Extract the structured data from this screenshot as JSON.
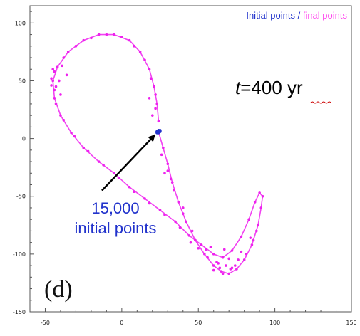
{
  "chart_data": {
    "type": "scatter",
    "xlim": [
      -60,
      150
    ],
    "ylim": [
      -150,
      115
    ],
    "x_ticks": [
      -50,
      0,
      50,
      100,
      150
    ],
    "y_ticks": [
      -150,
      -100,
      -50,
      0,
      50,
      100
    ],
    "x_tick_labels": [
      "-50",
      "0",
      "50",
      "100",
      "150"
    ],
    "y_tick_labels": [
      "-150",
      "-100",
      "-50",
      "0",
      "50",
      "100"
    ],
    "grid": false,
    "legend": {
      "position": "top-right",
      "entries": [
        {
          "label": "Initial points",
          "color": "#2233cc"
        },
        {
          "label": " / ",
          "color": "#2233cc"
        },
        {
          "label": "final points",
          "color": "#ff44ee"
        }
      ]
    },
    "series": [
      {
        "name": "final points",
        "color": "#ee22ee",
        "points": [
          [
            24,
            6
          ],
          [
            27,
            -8
          ],
          [
            30,
            -22
          ],
          [
            33,
            -38
          ],
          [
            37,
            -55
          ],
          [
            42,
            -72
          ],
          [
            48,
            -88
          ],
          [
            54,
            -100
          ],
          [
            60,
            -110
          ],
          [
            65,
            -115
          ],
          [
            70,
            -117
          ],
          [
            75,
            -113
          ],
          [
            80,
            -105
          ],
          [
            85,
            -92
          ],
          [
            89,
            -75
          ],
          [
            91,
            -60
          ],
          [
            92,
            -50
          ],
          [
            90,
            -47
          ],
          [
            87,
            -55
          ],
          [
            83,
            -70
          ],
          [
            78,
            -85
          ],
          [
            72,
            -97
          ],
          [
            66,
            -103
          ],
          [
            60,
            -100
          ],
          [
            52,
            -92
          ],
          [
            44,
            -84
          ],
          [
            35,
            -72
          ],
          [
            25,
            -62
          ],
          [
            15,
            -52
          ],
          [
            5,
            -42
          ],
          [
            -5,
            -30
          ],
          [
            -15,
            -20
          ],
          [
            -25,
            -8
          ],
          [
            -33,
            5
          ],
          [
            -40,
            20
          ],
          [
            -44,
            35
          ],
          [
            -45,
            50
          ],
          [
            -42,
            62
          ],
          [
            -35,
            75
          ],
          [
            -25,
            85
          ],
          [
            -15,
            90
          ],
          [
            -5,
            90
          ],
          [
            5,
            85
          ],
          [
            12,
            75
          ],
          [
            18,
            60
          ],
          [
            21,
            45
          ],
          [
            23,
            30
          ],
          [
            24,
            15
          ],
          [
            26,
            -14
          ],
          [
            30,
            -28
          ],
          [
            34,
            -45
          ],
          [
            40,
            -65
          ],
          [
            46,
            -80
          ],
          [
            55,
            -96
          ],
          [
            63,
            -108
          ],
          [
            72,
            -112
          ],
          [
            81,
            -100
          ],
          [
            88,
            -80
          ],
          [
            67,
            -96
          ],
          [
            58,
            -94
          ],
          [
            48,
            -88
          ],
          [
            38,
            -77
          ],
          [
            28,
            -66
          ],
          [
            18,
            -56
          ],
          [
            8,
            -46
          ],
          [
            -2,
            -34
          ],
          [
            -12,
            -23
          ],
          [
            -22,
            -11
          ],
          [
            -31,
            2
          ],
          [
            -38,
            16
          ],
          [
            -43,
            30
          ],
          [
            -46,
            46
          ],
          [
            -44,
            58
          ],
          [
            -38,
            70
          ],
          [
            -30,
            80
          ],
          [
            -20,
            87
          ],
          [
            -10,
            90
          ],
          [
            0,
            88
          ],
          [
            8,
            80
          ],
          [
            15,
            68
          ],
          [
            19,
            52
          ],
          [
            22,
            38
          ],
          [
            -46,
            52
          ],
          [
            -45,
            60
          ],
          [
            -43,
            45
          ],
          [
            -40,
            38
          ],
          [
            -39,
            63
          ],
          [
            -44,
            42
          ],
          [
            -36,
            55
          ],
          [
            -41,
            50
          ],
          [
            20,
            20
          ],
          [
            22,
            26
          ],
          [
            18,
            35
          ],
          [
            28,
            -30
          ],
          [
            32,
            -35
          ],
          [
            40,
            -60
          ],
          [
            64,
            -112
          ],
          [
            68,
            -110
          ],
          [
            74,
            -110
          ],
          [
            78,
            -98
          ],
          [
            84,
            -86
          ],
          [
            86,
            -88
          ],
          [
            76,
            -105
          ],
          [
            70,
            -104
          ],
          [
            62,
            -107
          ],
          [
            56,
            -103
          ],
          [
            50,
            -95
          ],
          [
            45,
            -90
          ],
          [
            60,
            -114
          ],
          [
            66,
            -117
          ],
          [
            71,
            -113
          ]
        ]
      },
      {
        "name": "Initial points",
        "color": "#2233cc",
        "points": [
          [
            23,
            6
          ],
          [
            24,
            6
          ],
          [
            25,
            6
          ],
          [
            24,
            5
          ],
          [
            24,
            7
          ],
          [
            23,
            5
          ],
          [
            25,
            7
          ]
        ]
      }
    ],
    "annotations": {
      "time_prefix": "t",
      "time_suffix": "=400 yr",
      "initial_count": "15,000",
      "initial_label": "initial points",
      "panel_label": "(d)",
      "arrow_from": [
        -13,
        -45
      ],
      "arrow_to": [
        23,
        5
      ]
    }
  }
}
